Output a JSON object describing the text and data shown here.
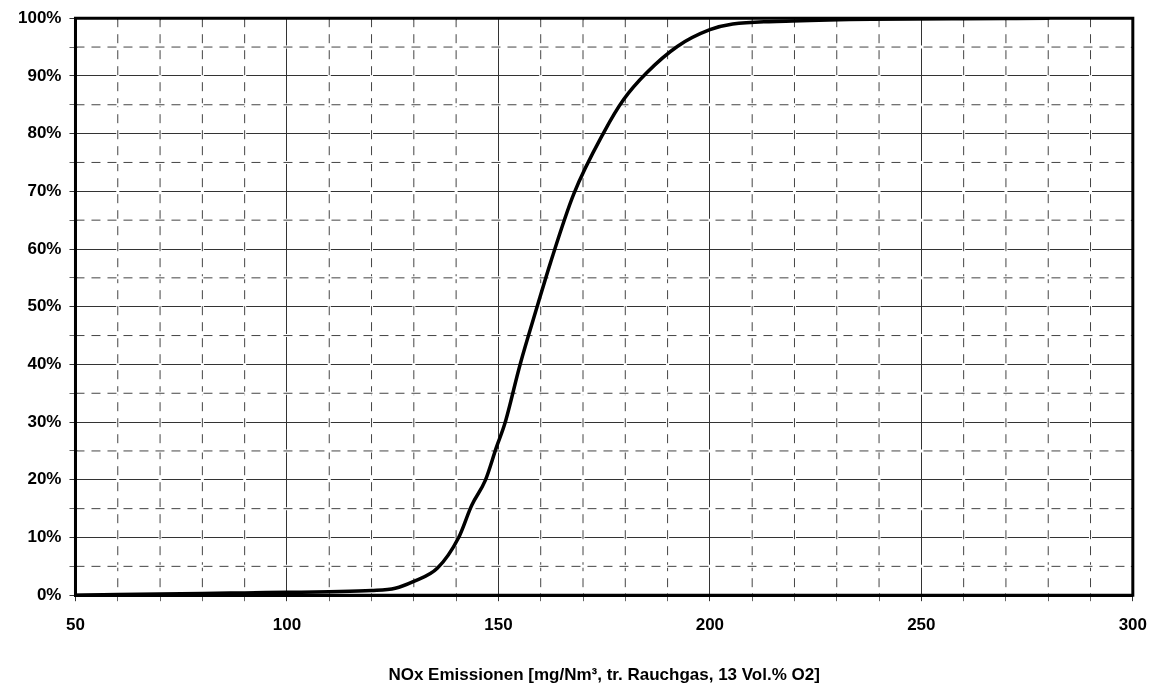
{
  "chart_data": {
    "type": "line",
    "xlabel": "NOx Emissionen [mg/Nm³, tr. Rauchgas, 13 Vol.% O2]",
    "series": [
      {
        "color": "#000000",
        "x": [
          50,
          60,
          70,
          80,
          90,
          100,
          110,
          120,
          125.6,
          129.7,
          135.6,
          140.6,
          143.7,
          146.9,
          149.6,
          151.5,
          155.1,
          159.2,
          162.3,
          167.8,
          175,
          179.6,
          185,
          192.3,
          200,
          205.4,
          219.5,
          238.2,
          260,
          280
        ],
        "values": [
          0,
          0.1,
          0.2,
          0.3,
          0.4,
          0.5,
          0.6,
          0.8,
          1.2,
          2.3,
          4.7,
          10,
          15.6,
          19.9,
          25.8,
          29.7,
          39.9,
          50.1,
          57.6,
          69.5,
          80.3,
          85.9,
          90.5,
          95.1,
          98,
          99,
          99.5,
          99.8,
          99.9,
          100
        ]
      }
    ],
    "xlim": [
      50,
      300
    ],
    "ylim": [
      0,
      100
    ],
    "xticks": [
      50,
      {
        "value": 60,
        "label": null
      },
      {
        "value": 70,
        "label": null
      },
      {
        "value": 80,
        "label": null
      },
      {
        "value": 90,
        "label": null
      },
      100,
      {
        "value": 110,
        "label": null
      },
      {
        "value": 120,
        "label": null
      },
      {
        "value": 130,
        "label": null
      },
      {
        "value": 140,
        "label": null
      },
      150,
      {
        "value": 160,
        "label": null
      },
      {
        "value": 170,
        "label": null
      },
      {
        "value": 180,
        "label": null
      },
      {
        "value": 190,
        "label": null
      },
      200,
      {
        "value": 210,
        "label": null
      },
      {
        "value": 220,
        "label": null
      },
      {
        "value": 230,
        "label": null
      },
      {
        "value": 240,
        "label": null
      },
      250,
      {
        "value": 260,
        "label": null
      },
      {
        "value": 270,
        "label": null
      },
      {
        "value": 280,
        "label": null
      },
      {
        "value": 290,
        "label": null
      },
      300
    ],
    "yticks": [
      {
        "value": 0,
        "label": "0%"
      },
      {
        "value": 5,
        "label": null
      },
      {
        "value": 10,
        "label": "10%"
      },
      {
        "value": 15,
        "label": null
      },
      {
        "value": 20,
        "label": "20%"
      },
      {
        "value": 25,
        "label": null
      },
      {
        "value": 30,
        "label": "30%"
      },
      {
        "value": 35,
        "label": null
      },
      {
        "value": 40,
        "label": "40%"
      },
      {
        "value": 45,
        "label": null
      },
      {
        "value": 50,
        "label": "50%"
      },
      {
        "value": 55,
        "label": null
      },
      {
        "value": 60,
        "label": "60%"
      },
      {
        "value": 65,
        "label": null
      },
      {
        "value": 70,
        "label": "70%"
      },
      {
        "value": 75,
        "label": null
      },
      {
        "value": 80,
        "label": "80%"
      },
      {
        "value": 85,
        "label": null
      },
      {
        "value": 90,
        "label": "90%"
      },
      {
        "value": 95,
        "label": null
      },
      {
        "value": 100,
        "label": "100%"
      }
    ],
    "grid": true,
    "legend": false,
    "marker": "none",
    "line_style": "solid"
  }
}
